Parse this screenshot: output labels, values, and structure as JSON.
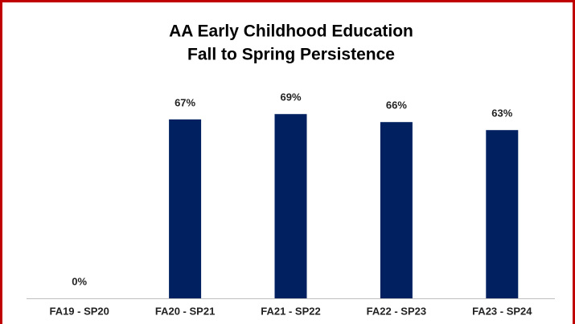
{
  "chart_data": {
    "type": "bar",
    "title": [
      "AA Early Childhood Education",
      "Fall to Spring Persistence"
    ],
    "categories": [
      "FA19 - SP20",
      "FA20 - SP21",
      "FA21 - SP22",
      "FA22 - SP23",
      "FA23 - SP24"
    ],
    "values": [
      0,
      67,
      69,
      66,
      63
    ],
    "value_labels": [
      "0%",
      "67%",
      "69%",
      "66%",
      "63%"
    ],
    "color": "#002060"
  }
}
